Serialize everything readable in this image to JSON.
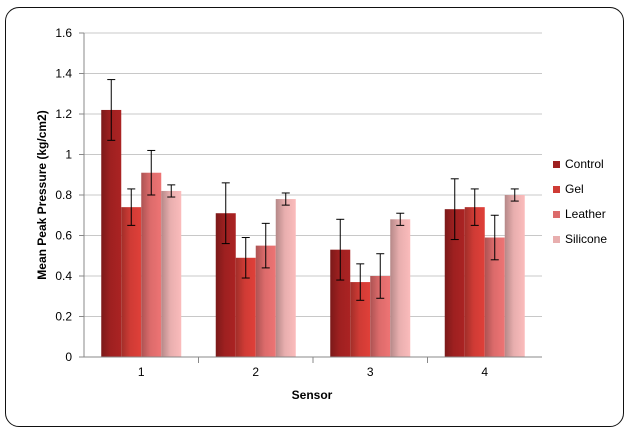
{
  "chart_data": {
    "type": "bar",
    "xlabel": "Sensor",
    "ylabel": "Mean Peak Pressure (kg/cm2)",
    "ylim": [
      0,
      1.6
    ],
    "yticks": [
      "0",
      "0.2",
      "0.4",
      "0.6",
      "0.8",
      "1",
      "1.2",
      "1.4",
      "1.6"
    ],
    "categories": [
      "1",
      "2",
      "3",
      "4"
    ],
    "grid": true,
    "legend": "right",
    "series": [
      {
        "name": "Control",
        "color": "#9e2020",
        "values": [
          1.22,
          0.71,
          0.53,
          0.73
        ],
        "errors": [
          0.15,
          0.15,
          0.15,
          0.15
        ]
      },
      {
        "name": "Gel",
        "color": "#cf3b35",
        "values": [
          0.74,
          0.49,
          0.37,
          0.74
        ],
        "errors": [
          0.09,
          0.1,
          0.09,
          0.09
        ]
      },
      {
        "name": "Leather",
        "color": "#dc6b6b",
        "values": [
          0.91,
          0.55,
          0.4,
          0.59
        ],
        "errors": [
          0.11,
          0.11,
          0.11,
          0.11
        ]
      },
      {
        "name": "Silicone",
        "color": "#e8aeae",
        "values": [
          0.82,
          0.78,
          0.68,
          0.8
        ],
        "errors": [
          0.03,
          0.03,
          0.03,
          0.03
        ]
      }
    ]
  }
}
